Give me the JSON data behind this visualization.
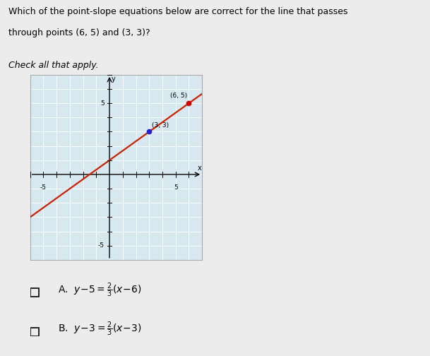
{
  "title_line1": "Which of the point-slope equations below are correct for the line that passes",
  "title_line2": "through points (6, 5) and (3, 3)?",
  "subtitle": "Check all that apply.",
  "background_color": "#ececec",
  "plot_bg_color": "#d8e8f0",
  "point1": [
    6,
    5
  ],
  "point2": [
    3,
    3
  ],
  "point1_label": "(6, 5)",
  "point2_label": "(3, 3)",
  "point_color1": "#cc0000",
  "point_color2": "#2222cc",
  "line_color": "#cc2200",
  "axis_xlim": [
    -6,
    7
  ],
  "axis_ylim": [
    -6,
    7
  ],
  "x_tick_label_pos": 5,
  "x_tick_label_neg": -5,
  "y_tick_label_pos": 5,
  "y_tick_label_neg": -5
}
